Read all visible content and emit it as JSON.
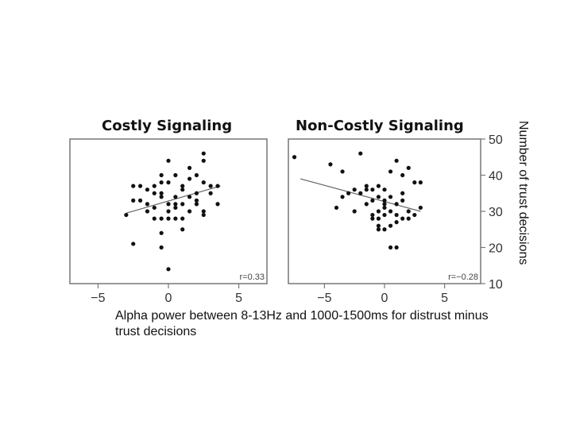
{
  "chart_data": [
    {
      "type": "scatter",
      "title": "Costly Signaling",
      "xlim": [
        -7,
        7
      ],
      "ylim": [
        10,
        50
      ],
      "xticks": [
        -5,
        0,
        5
      ],
      "yticks": [
        10,
        20,
        30,
        40,
        50
      ],
      "show_yticks": false,
      "annotation": "r=0.33",
      "trendline": {
        "x": [
          -3,
          3.7
        ],
        "y": [
          29.5,
          37
        ]
      },
      "points": [
        [
          -3,
          29
        ],
        [
          -2.5,
          37
        ],
        [
          -2,
          37
        ],
        [
          -1.5,
          36
        ],
        [
          -1,
          37
        ],
        [
          -0.5,
          38
        ],
        [
          0,
          38
        ],
        [
          0,
          44
        ],
        [
          0.5,
          40
        ],
        [
          0.5,
          34
        ],
        [
          1,
          37
        ],
        [
          1.5,
          42
        ],
        [
          2,
          40
        ],
        [
          2.5,
          44
        ],
        [
          2.5,
          38
        ],
        [
          3,
          37
        ],
        [
          3.5,
          37
        ],
        [
          2.5,
          46
        ],
        [
          2,
          35
        ],
        [
          -2.5,
          33
        ],
        [
          -2,
          33
        ],
        [
          -1.5,
          30
        ],
        [
          -1,
          31
        ],
        [
          -0.5,
          35
        ],
        [
          0,
          32
        ],
        [
          0.5,
          32
        ],
        [
          1,
          32
        ],
        [
          -0.5,
          28
        ],
        [
          0,
          28
        ],
        [
          1,
          28
        ],
        [
          1.5,
          34
        ],
        [
          2,
          33
        ],
        [
          3,
          35
        ],
        [
          2.5,
          30
        ],
        [
          -1,
          28
        ],
        [
          -0.5,
          34
        ],
        [
          0,
          30
        ],
        [
          0.5,
          28
        ],
        [
          -0.5,
          24
        ],
        [
          1,
          25
        ],
        [
          -2.5,
          21
        ],
        [
          -0.5,
          20
        ],
        [
          -1,
          35
        ],
        [
          0,
          14
        ],
        [
          2,
          32
        ],
        [
          1.5,
          30
        ],
        [
          3.5,
          32
        ],
        [
          -1.5,
          32
        ],
        [
          0.5,
          31
        ],
        [
          2.5,
          29
        ],
        [
          -0.5,
          40
        ],
        [
          1,
          36
        ],
        [
          1.5,
          39
        ]
      ]
    },
    {
      "type": "scatter",
      "title": "Non-Costly Signaling",
      "xlim": [
        -8,
        8
      ],
      "ylim": [
        10,
        50
      ],
      "xticks": [
        -5,
        0,
        5
      ],
      "yticks": [
        10,
        20,
        30,
        40,
        50
      ],
      "show_yticks": true,
      "annotation": "r=−0.28",
      "trendline": {
        "x": [
          -7,
          3
        ],
        "y": [
          39,
          30
        ]
      },
      "points": [
        [
          -7.5,
          45
        ],
        [
          -4.5,
          43
        ],
        [
          -3.5,
          41
        ],
        [
          -3,
          35
        ],
        [
          -2.5,
          36
        ],
        [
          -2,
          35
        ],
        [
          -1.5,
          37
        ],
        [
          -1,
          36
        ],
        [
          -0.5,
          37
        ],
        [
          0,
          36
        ],
        [
          0.5,
          41
        ],
        [
          1,
          44
        ],
        [
          1.5,
          40
        ],
        [
          2,
          42
        ],
        [
          2.5,
          38
        ],
        [
          3,
          38
        ],
        [
          -4,
          31
        ],
        [
          -3.5,
          34
        ],
        [
          -2.5,
          30
        ],
        [
          -1.5,
          32
        ],
        [
          -1,
          33
        ],
        [
          -1,
          29
        ],
        [
          -0.5,
          28
        ],
        [
          -0.5,
          26
        ],
        [
          0,
          33
        ],
        [
          0,
          31
        ],
        [
          0.5,
          30
        ],
        [
          0.5,
          26
        ],
        [
          1,
          29
        ],
        [
          1,
          32
        ],
        [
          1.5,
          28
        ],
        [
          2,
          30
        ],
        [
          2.5,
          29
        ],
        [
          3,
          31
        ],
        [
          -1.5,
          36
        ],
        [
          -1,
          28
        ],
        [
          0,
          25
        ],
        [
          0.5,
          20
        ],
        [
          1,
          20
        ],
        [
          -0.5,
          25
        ],
        [
          -2,
          46
        ],
        [
          0.5,
          34
        ],
        [
          1.5,
          33
        ],
        [
          1.5,
          35
        ],
        [
          0,
          29
        ],
        [
          -0.5,
          30
        ],
        [
          2,
          28
        ],
        [
          0,
          32
        ],
        [
          -0.5,
          34
        ],
        [
          1,
          27
        ]
      ]
    }
  ],
  "labels": {
    "title_left": "Costly Signaling",
    "title_right": "Non-Costly Signaling",
    "ylabel": "Number of trust decisions",
    "caption": "Alpha power between 8-13Hz and 1000-1500ms for distrust minus trust decisions"
  }
}
